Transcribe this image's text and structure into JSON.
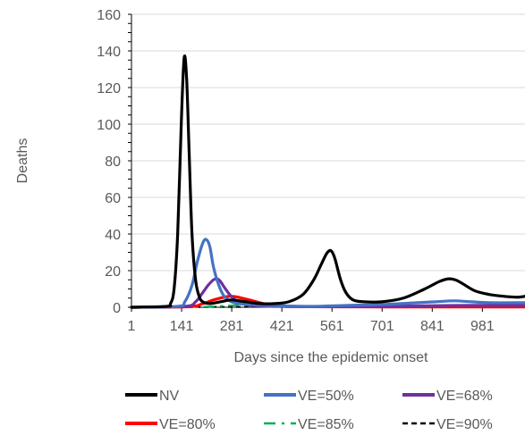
{
  "chart_data": {
    "type": "line",
    "title": "",
    "xlabel": "Days since the epidemic onset",
    "ylabel": "Deaths",
    "xlim": [
      1,
      1100
    ],
    "ylim": [
      0,
      160
    ],
    "x_ticks": [
      1,
      141,
      281,
      421,
      561,
      701,
      841,
      981
    ],
    "y_ticks": [
      0,
      20,
      40,
      60,
      80,
      100,
      120,
      140,
      160
    ],
    "grid": "horizontal",
    "legend_position": "bottom",
    "series": [
      {
        "name": "NV",
        "color": "#000000",
        "dash": "solid",
        "x": [
          1,
          100,
          110,
          120,
          130,
          140,
          148,
          155,
          162,
          170,
          180,
          190,
          200,
          220,
          250,
          280,
          320,
          360,
          400,
          440,
          480,
          510,
          530,
          545,
          555,
          562,
          570,
          585,
          600,
          620,
          650,
          700,
          760,
          820,
          860,
          885,
          905,
          925,
          960,
          1000,
          1040,
          1080,
          1100
        ],
        "y": [
          0,
          0.5,
          2,
          10,
          40,
          100,
          136,
          125,
          85,
          40,
          15,
          6,
          3,
          2,
          3,
          4,
          3,
          2,
          2,
          3,
          7,
          15,
          23,
          29,
          31,
          30,
          26,
          15,
          8,
          4,
          3,
          3,
          5,
          10,
          14,
          15.5,
          15,
          13,
          9,
          7,
          6,
          5.5,
          6
        ]
      },
      {
        "name": "VE=50%",
        "color": "#4472C4",
        "dash": "solid",
        "x": [
          1,
          130,
          150,
          170,
          185,
          200,
          210,
          220,
          230,
          245,
          260,
          280,
          300,
          330,
          380,
          500,
          600,
          700,
          800,
          850,
          900,
          950,
          1000,
          1100
        ],
        "y": [
          0,
          0.5,
          3,
          12,
          25,
          35,
          37,
          33,
          22,
          12,
          6,
          3,
          2,
          1.5,
          1,
          0.5,
          1,
          1.5,
          2.5,
          3,
          3.5,
          3,
          2.5,
          2.5
        ]
      },
      {
        "name": "VE=68%",
        "color": "#7030A0",
        "dash": "solid",
        "x": [
          1,
          150,
          180,
          200,
          215,
          230,
          240,
          250,
          260,
          275,
          290,
          310,
          330,
          360,
          400,
          500,
          700,
          900,
          1100
        ],
        "y": [
          0,
          0.5,
          3,
          8,
          12,
          15,
          15.5,
          14,
          11,
          7,
          4,
          2,
          1.2,
          0.7,
          0.5,
          0.3,
          0.5,
          1,
          1
        ]
      },
      {
        "name": "VE=80%",
        "color": "#FF0000",
        "dash": "solid",
        "x": [
          1,
          160,
          200,
          230,
          260,
          275,
          290,
          310,
          340,
          370,
          400,
          430,
          500,
          700,
          900,
          1100
        ],
        "y": [
          0,
          0.3,
          2,
          4,
          5.5,
          6,
          5.8,
          5,
          3.5,
          2,
          1,
          0.5,
          0.3,
          0.2,
          0.2,
          0.2
        ]
      },
      {
        "name": "VE=85%",
        "color": "#00B050",
        "dash": "dash-dot",
        "x": [
          1,
          200,
          280,
          350,
          420,
          500,
          700,
          1100
        ],
        "y": [
          0,
          0.3,
          1,
          1.2,
          0.8,
          0.4,
          0.2,
          0.2
        ]
      },
      {
        "name": "VE=90%",
        "color": "#000000",
        "dash": "dashed",
        "x": [
          1,
          300,
          500,
          700,
          1100
        ],
        "y": [
          0,
          0.2,
          0.3,
          0.2,
          0.2
        ]
      }
    ]
  }
}
